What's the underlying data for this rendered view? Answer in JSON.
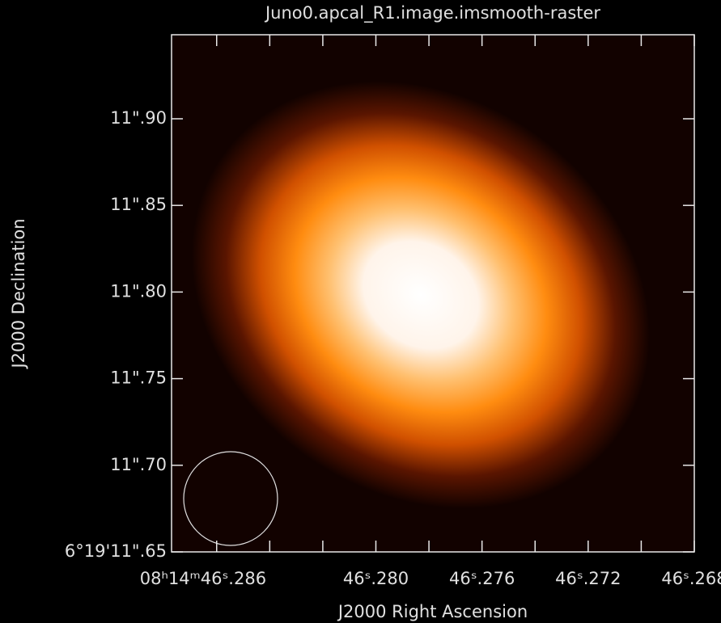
{
  "chart_data": {
    "type": "image",
    "title": "Juno0.apcal_R1.image.imsmooth-raster",
    "x_label": "J2000 Right Ascension",
    "y_label": "J2000 Declination",
    "xlim": [
      46.2877,
      46.268
    ],
    "ylim": [
      11.65,
      11.9485
    ],
    "xticks": [
      {
        "value": 46.286,
        "label": "08ʰ14ᵐ46ˢ.286"
      },
      {
        "value": 46.284,
        "label": ""
      },
      {
        "value": 46.282,
        "label": ""
      },
      {
        "value": 46.28,
        "label": "46ˢ.280"
      },
      {
        "value": 46.278,
        "label": ""
      },
      {
        "value": 46.276,
        "label": "46ˢ.276"
      },
      {
        "value": 46.274,
        "label": ""
      },
      {
        "value": 46.272,
        "label": "46ˢ.272"
      },
      {
        "value": 46.27,
        "label": ""
      },
      {
        "value": 46.268,
        "label": "46ˢ.268"
      }
    ],
    "yticks": [
      {
        "value": 11.65,
        "label": "6°19'11\".65"
      },
      {
        "value": 11.7,
        "label": "11\".70"
      },
      {
        "value": 11.75,
        "label": "11\".75"
      },
      {
        "value": 11.8,
        "label": "11\".80"
      },
      {
        "value": 11.85,
        "label": "11\".85"
      },
      {
        "value": 11.9,
        "label": "11\".90"
      }
    ]
  }
}
